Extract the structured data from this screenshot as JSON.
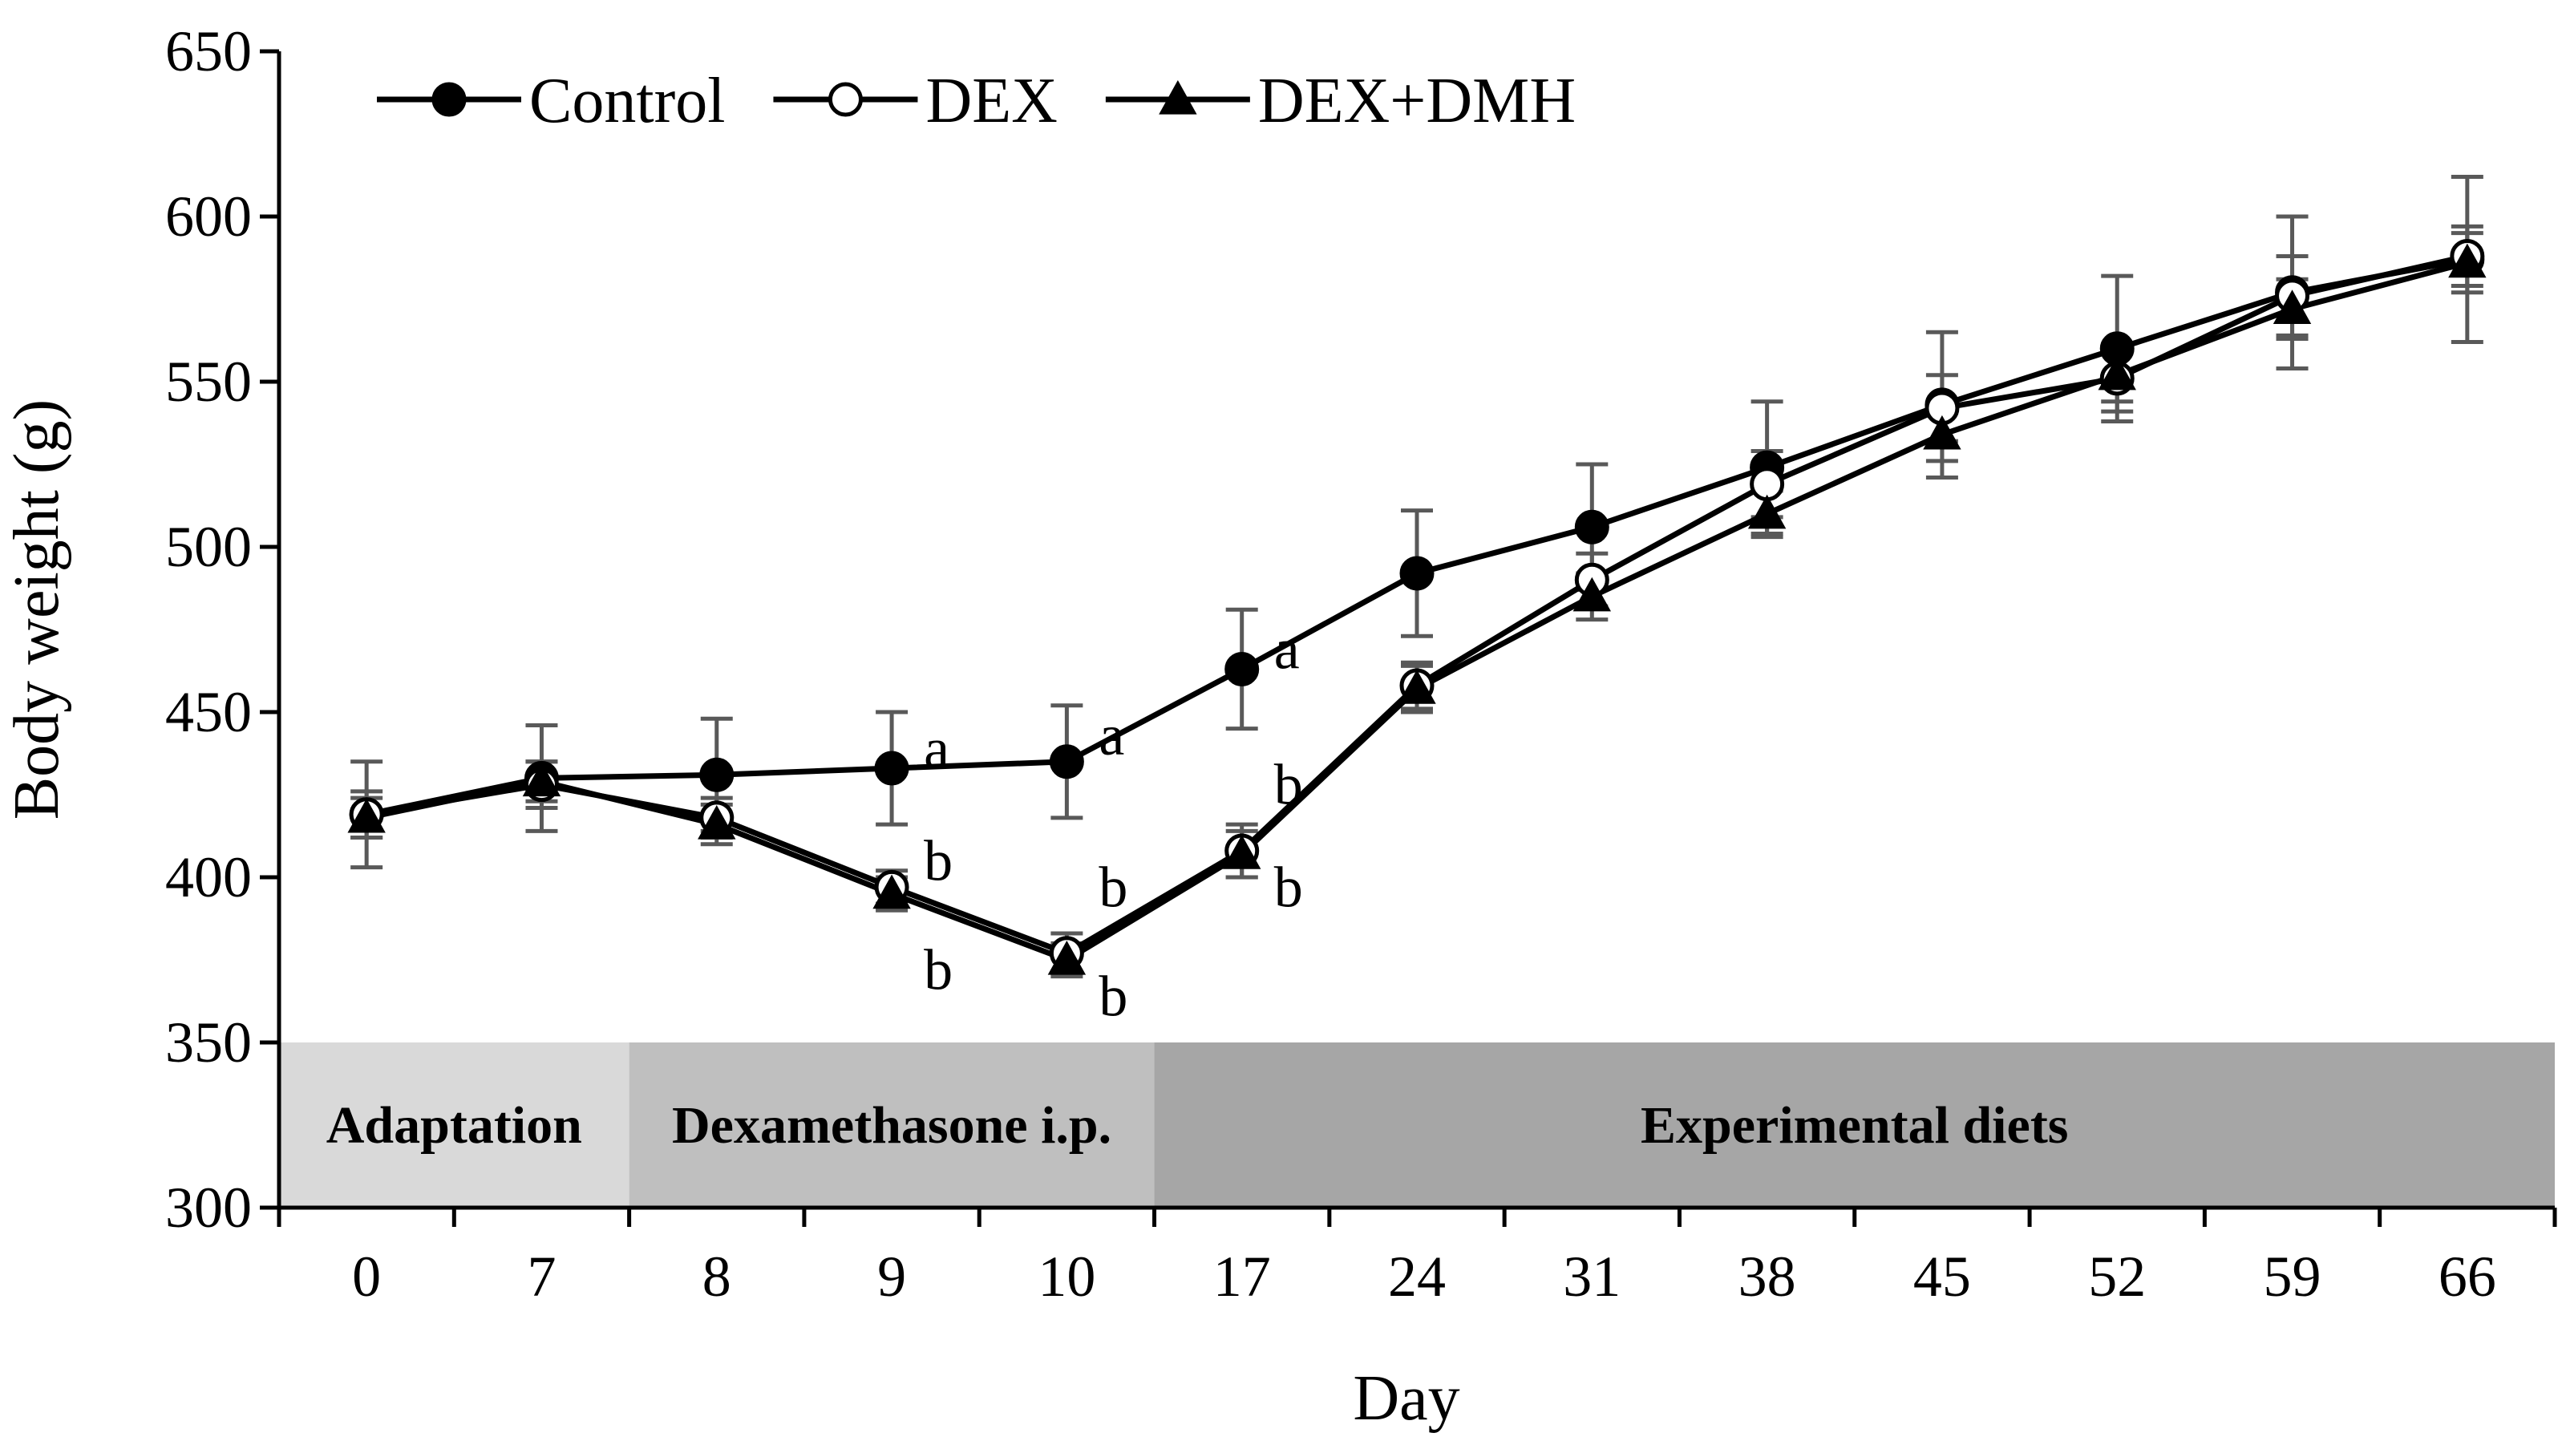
{
  "chart_data": {
    "type": "line",
    "title": "",
    "xlabel": "Day",
    "ylabel": "Body weight (g)",
    "ylim": [
      300,
      650
    ],
    "yticks": [
      300,
      350,
      400,
      450,
      500,
      550,
      600,
      650
    ],
    "categories": [
      "0",
      "7",
      "8",
      "9",
      "10",
      "17",
      "24",
      "31",
      "38",
      "45",
      "52",
      "59",
      "66"
    ],
    "legend_position": "top-left",
    "grid": false,
    "series": [
      {
        "name": "Control",
        "marker": "filled-circle",
        "values": [
          419,
          430,
          431,
          433,
          435,
          463,
          492,
          506,
          524,
          543,
          560,
          577,
          587
        ],
        "errors": [
          16,
          16,
          17,
          17,
          17,
          18,
          19,
          19,
          20,
          22,
          22,
          23,
          25
        ]
      },
      {
        "name": "DEX",
        "marker": "open-circle",
        "values": [
          419,
          428,
          418,
          397,
          377,
          408,
          458,
          490,
          519,
          542,
          551,
          576,
          588
        ],
        "errors": [
          7,
          7,
          6,
          5,
          6,
          8,
          7,
          8,
          10,
          10,
          10,
          12,
          9
        ]
      },
      {
        "name": "DEX+DMH",
        "marker": "filled-triangle",
        "values": [
          418,
          429,
          416,
          395,
          375,
          407,
          457,
          485,
          510,
          534,
          552,
          572,
          586
        ],
        "errors": [
          6,
          6,
          6,
          5,
          5,
          7,
          7,
          7,
          7,
          8,
          8,
          9,
          9
        ]
      }
    ],
    "phases": [
      {
        "label": "Adaptation",
        "start_index": 0,
        "end_index": 1,
        "color": "#d9d9d9"
      },
      {
        "label": "Dexamethasone i.p.",
        "start_index": 2,
        "end_index": 4,
        "color": "#bfbfbf"
      },
      {
        "label": "Experimental diets",
        "start_index": 5,
        "end_index": 12,
        "color": "#a6a6a6"
      }
    ],
    "significance_labels": [
      {
        "text": "a",
        "category_index": 3,
        "value": 439,
        "side": "right"
      },
      {
        "text": "b",
        "category_index": 3,
        "value": 405,
        "side": "right"
      },
      {
        "text": "b",
        "category_index": 3,
        "value": 372,
        "side": "right"
      },
      {
        "text": "a",
        "category_index": 4,
        "value": 443,
        "side": "right"
      },
      {
        "text": "b",
        "category_index": 4,
        "value": 397,
        "side": "right"
      },
      {
        "text": "b",
        "category_index": 4,
        "value": 364,
        "side": "right"
      },
      {
        "text": "a",
        "category_index": 5,
        "value": 469,
        "side": "right"
      },
      {
        "text": "b",
        "category_index": 5,
        "value": 428,
        "side": "right"
      },
      {
        "text": "b",
        "category_index": 5,
        "value": 397,
        "side": "right"
      }
    ]
  }
}
